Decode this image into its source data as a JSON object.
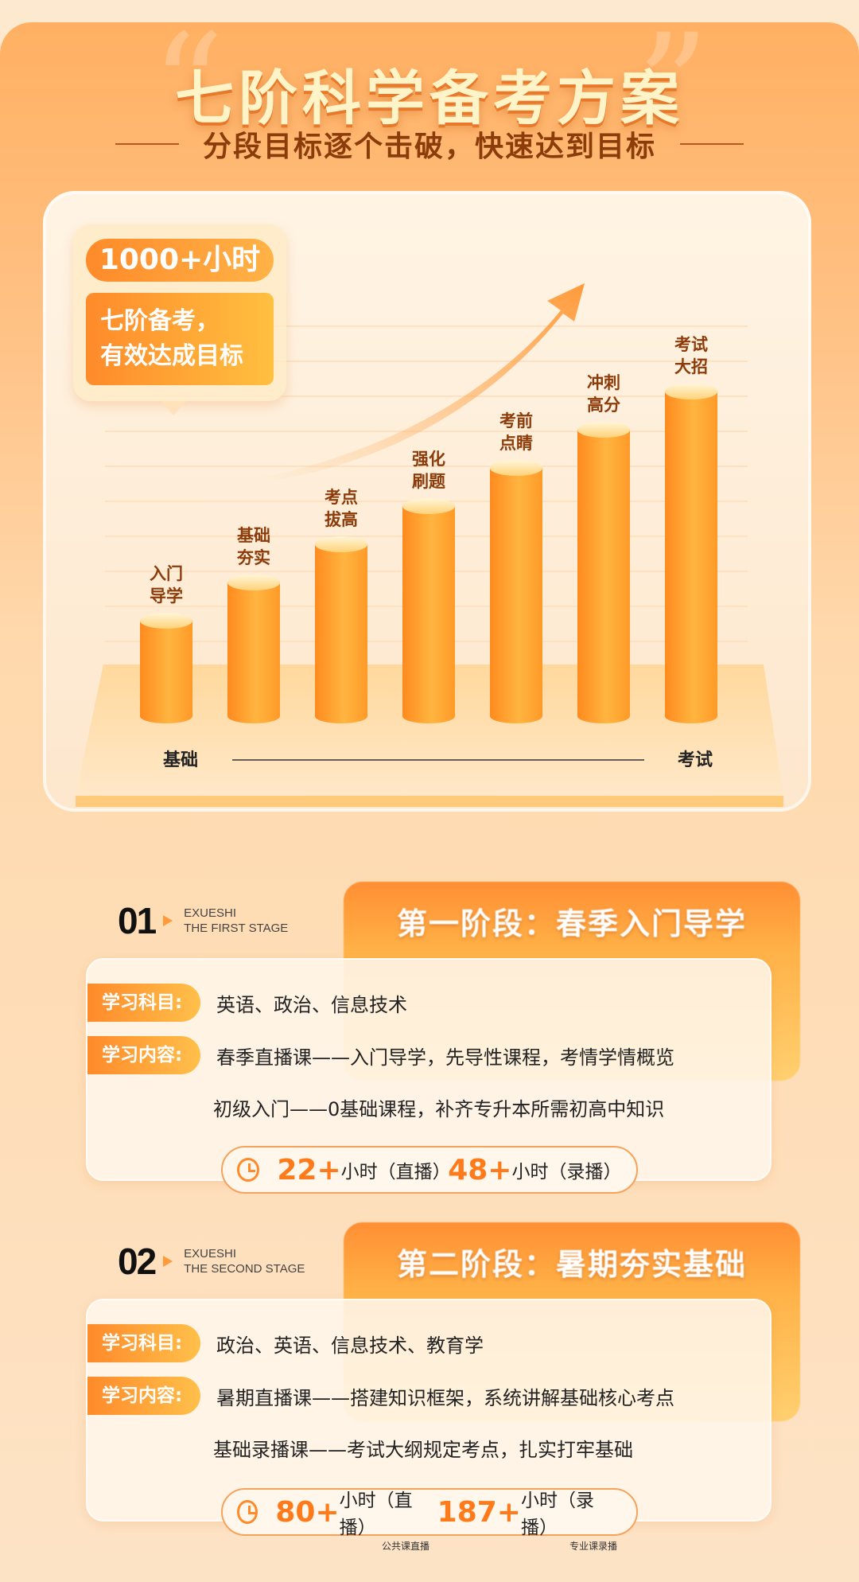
{
  "header": {
    "title": "七阶科学备考方案",
    "subtitle": "分段目标逐个击破，快速达到目标",
    "quote_open": "“",
    "quote_close": "”"
  },
  "bubble": {
    "hours": "1000+小时",
    "line1": "七阶备考，",
    "line2": "有效达成目标"
  },
  "chart_data": {
    "type": "bar",
    "categories": [
      "入门导学",
      "基础夯实",
      "考点拔高",
      "强化刷题",
      "考前点睛",
      "冲刺高分",
      "考试大招"
    ],
    "label_lines": [
      [
        "入门",
        "导学"
      ],
      [
        "基础",
        "夯实"
      ],
      [
        "考点",
        "拔高"
      ],
      [
        "强化",
        "刷题"
      ],
      [
        "考前",
        "点睛"
      ],
      [
        "冲刺",
        "高分"
      ],
      [
        "考试",
        "大招"
      ]
    ],
    "values": [
      1,
      2,
      3,
      4,
      5,
      6,
      7
    ],
    "xlabel_start": "基础",
    "xlabel_end": "考试",
    "colors": {
      "bar_top": "#ffe08a",
      "bar_body": "#ff9a28",
      "label": "#8c3c0a"
    }
  },
  "stages": [
    {
      "num": "01",
      "en1": "EXUESHI",
      "en2": "THE FIRST STAGE",
      "title": "第一阶段：春季入门导学",
      "subject_tag": "学习科目:",
      "subjects": "英语、政治、信息技术",
      "content_tag": "学习内容:",
      "content1": "春季直播课——入门导学，先导性课程，考情学情概览",
      "content2": "初级入门——0基础课程，补齐专升本所需初高中知识",
      "live_hours": "22+",
      "live_unit": "小时（直播）",
      "rec_hours": "48+",
      "rec_unit": "小时（录播）"
    },
    {
      "num": "02",
      "en1": "EXUESHI",
      "en2": "THE SECOND STAGE",
      "title": "第二阶段：暑期夯实基础",
      "subject_tag": "学习科目:",
      "subjects": "政治、英语、信息技术、教育学",
      "content_tag": "学习内容:",
      "content1": "暑期直播课——搭建知识框架，系统讲解基础核心考点",
      "content2": "基础录播课——考试大纲规定考点，扎实打牢基础",
      "live_hours": "80+",
      "live_unit": "小时（直播）",
      "rec_hours": "187+",
      "rec_unit": "小时（录播）",
      "live_note": "公共课直播",
      "rec_note": "专业课录播"
    }
  ]
}
